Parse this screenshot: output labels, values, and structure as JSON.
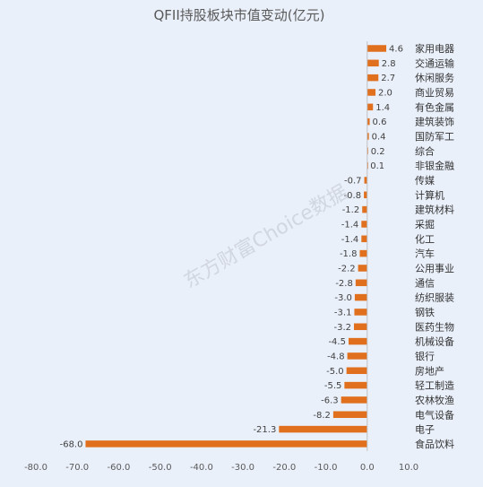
{
  "watermark": "东方财富Choice数据",
  "colors": {
    "bar": "#e0701e",
    "background": "#eaf0fa",
    "zero_line": "#bfbfbf"
  },
  "chart_data": {
    "type": "bar",
    "orientation": "horizontal",
    "title": "QFII持股板块市值变动(亿元)",
    "xlabel": "",
    "ylabel": "",
    "xlim": [
      -80,
      10
    ],
    "xticks": [
      -80,
      -70,
      -60,
      -50,
      -40,
      -30,
      -20,
      -10,
      0,
      10
    ],
    "xtick_labels": [
      "-80.0",
      "-70.0",
      "-60.0",
      "-50.0",
      "-40.0",
      "-30.0",
      "-20.0",
      "-10.0",
      "0.0",
      "10.0"
    ],
    "grid": false,
    "legend": "none",
    "categories": [
      "家用电器",
      "交通运输",
      "休闲服务",
      "商业贸易",
      "有色金属",
      "建筑装饰",
      "国防军工",
      "综合",
      "非银金融",
      "传媒",
      "计算机",
      "建筑材料",
      "采掘",
      "化工",
      "汽车",
      "公用事业",
      "通信",
      "纺织服装",
      "钢铁",
      "医药生物",
      "机械设备",
      "银行",
      "房地产",
      "轻工制造",
      "农林牧渔",
      "电气设备",
      "电子",
      "食品饮料"
    ],
    "values": [
      4.6,
      2.8,
      2.7,
      2.0,
      1.4,
      0.6,
      0.4,
      0.2,
      0.1,
      -0.7,
      -0.8,
      -1.2,
      -1.4,
      -1.4,
      -1.8,
      -2.2,
      -2.8,
      -3.0,
      -3.1,
      -3.2,
      -4.5,
      -4.8,
      -5.0,
      -5.5,
      -6.3,
      -8.2,
      -21.3,
      -68.0
    ],
    "value_labels": [
      "4.6",
      "2.8",
      "2.7",
      "2.0",
      "1.4",
      "0.6",
      "0.4",
      "0.2",
      "0.1",
      "-0.7",
      "-0.8",
      "-1.2",
      "-1.4",
      "-1.4",
      "-1.8",
      "-2.2",
      "-2.8",
      "-3.0",
      "-3.1",
      "-3.2",
      "-4.5",
      "-4.8",
      "-5.0",
      "-5.5",
      "-6.3",
      "-8.2",
      "-21.3",
      "-68.0"
    ]
  }
}
